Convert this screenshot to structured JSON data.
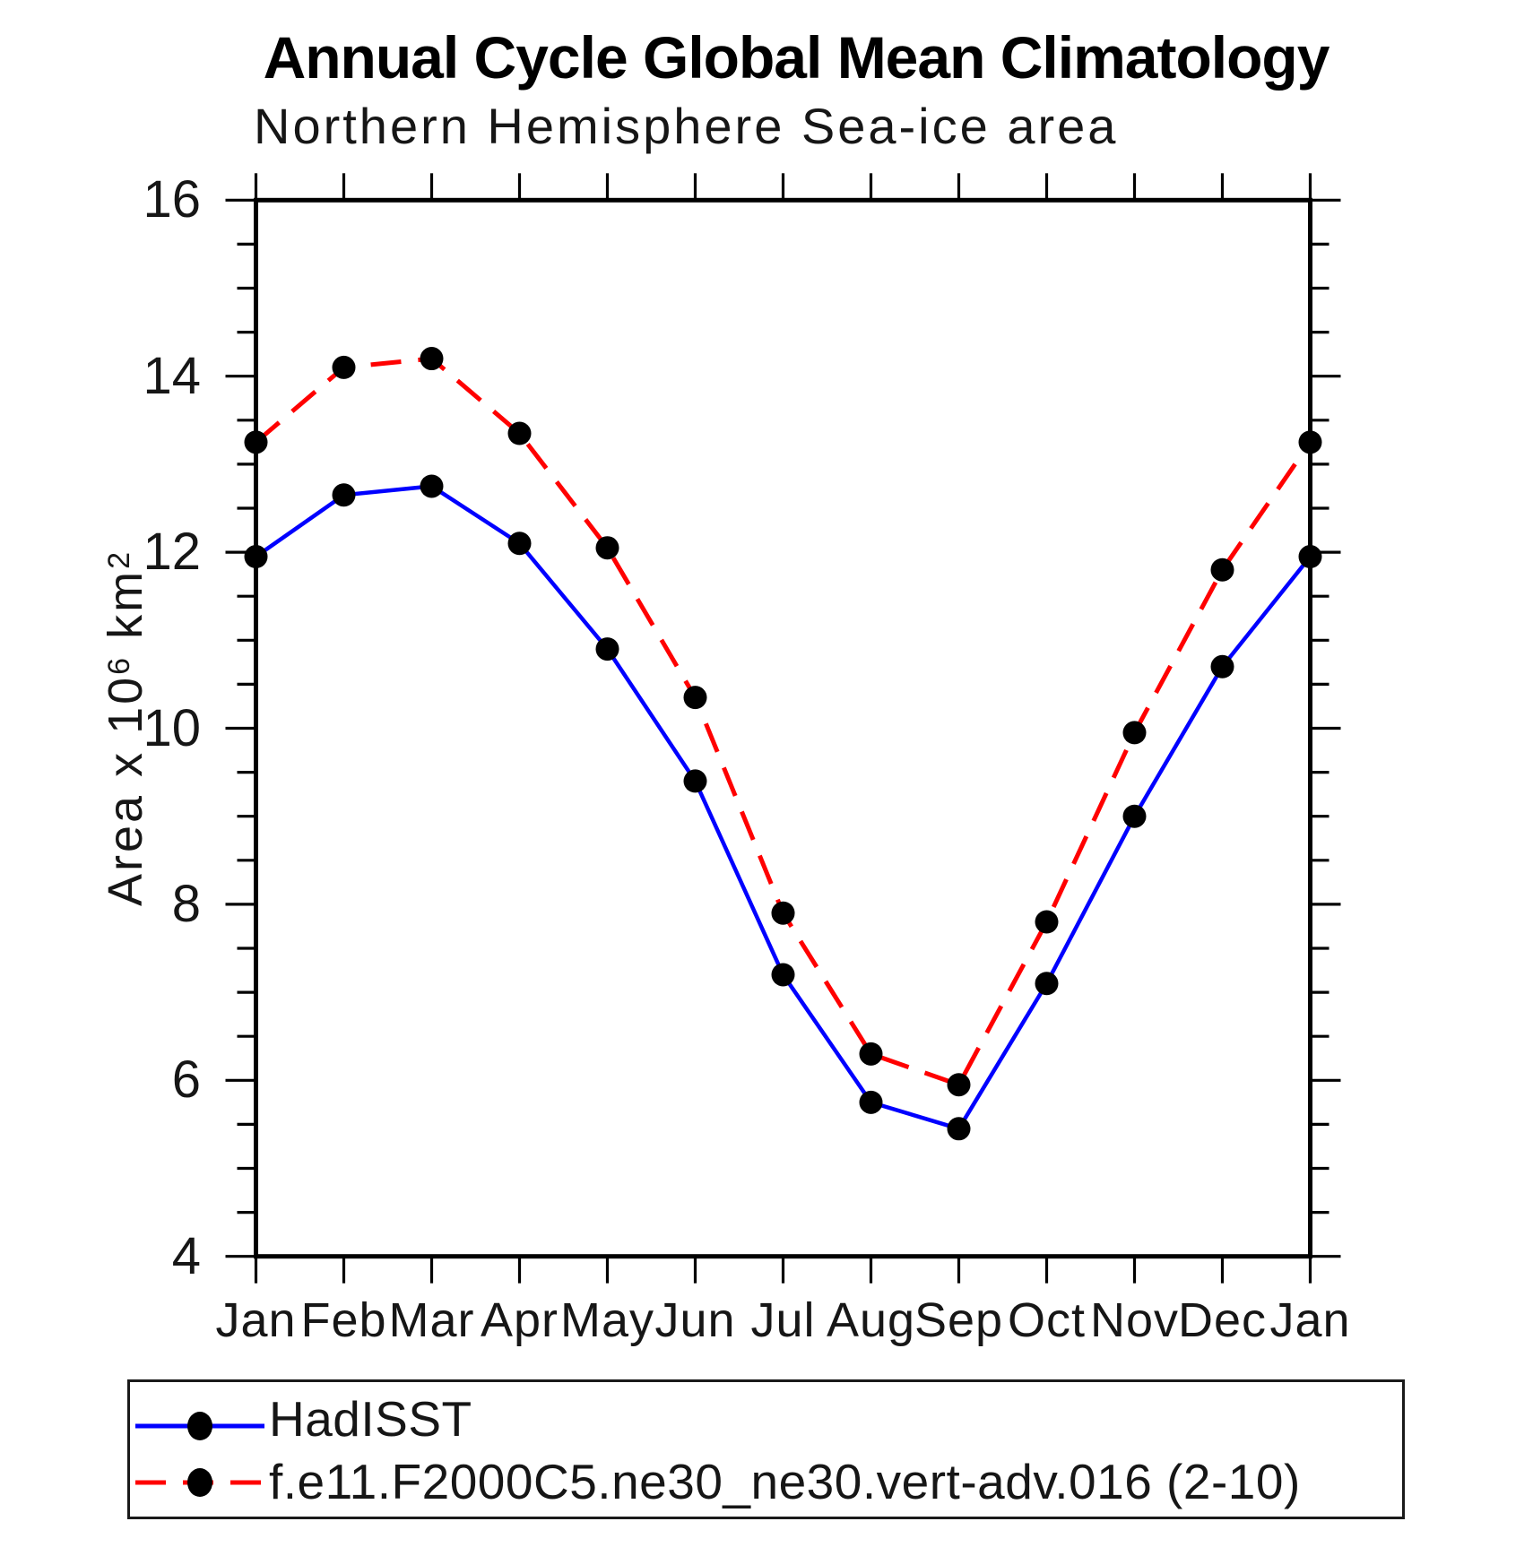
{
  "title": "Annual Cycle Global Mean Climatology",
  "subtitle": "Northern Hemisphere Sea-ice area",
  "y_axis": {
    "label_base": "Area x 10",
    "label_sup1": "6",
    "label_mid": " km",
    "label_sup2": "2",
    "tick_labels": [
      "16",
      "14",
      "12",
      "10",
      "8",
      "6",
      "4"
    ]
  },
  "x_axis": {
    "tick_labels": [
      "Jan",
      "Feb",
      "Mar",
      "Apr",
      "May",
      "Jun",
      "Jul",
      "Aug",
      "Sep",
      "Oct",
      "Nov",
      "Dec",
      "Jan"
    ]
  },
  "legend": {
    "items": [
      {
        "label": "HadISST",
        "color": "#0000ff",
        "dashed": false
      },
      {
        "label": "f.e11.F2000C5.ne30_ne30.vert-adv.016 (2-10)",
        "color": "#ff0000",
        "dashed": true
      }
    ]
  },
  "chart_data": {
    "type": "line",
    "title": "Annual Cycle Global Mean Climatology",
    "subtitle": "Northern Hemisphere Sea-ice area",
    "xlabel": "",
    "ylabel": "Area x 10^6 km^2",
    "ylim": [
      4,
      16
    ],
    "y_major_step": 2,
    "y_minor_step": 0.5,
    "grid": false,
    "marker": "filled-black-circle",
    "legend_position": "bottom",
    "categories": [
      "Jan",
      "Feb",
      "Mar",
      "Apr",
      "May",
      "Jun",
      "Jul",
      "Aug",
      "Sep",
      "Oct",
      "Nov",
      "Dec",
      "Jan"
    ],
    "series": [
      {
        "name": "HadISST",
        "color": "#0000ff",
        "style": "solid",
        "values": [
          11.95,
          12.65,
          12.75,
          12.1,
          10.9,
          9.4,
          7.2,
          5.75,
          5.45,
          7.1,
          9.0,
          10.7,
          11.95
        ]
      },
      {
        "name": "f.e11.F2000C5.ne30_ne30.vert-adv.016 (2-10)",
        "color": "#ff0000",
        "style": "dashed",
        "values": [
          13.25,
          14.1,
          14.2,
          13.35,
          12.05,
          10.35,
          7.9,
          6.3,
          5.95,
          7.8,
          9.95,
          11.8,
          13.25
        ]
      }
    ]
  }
}
